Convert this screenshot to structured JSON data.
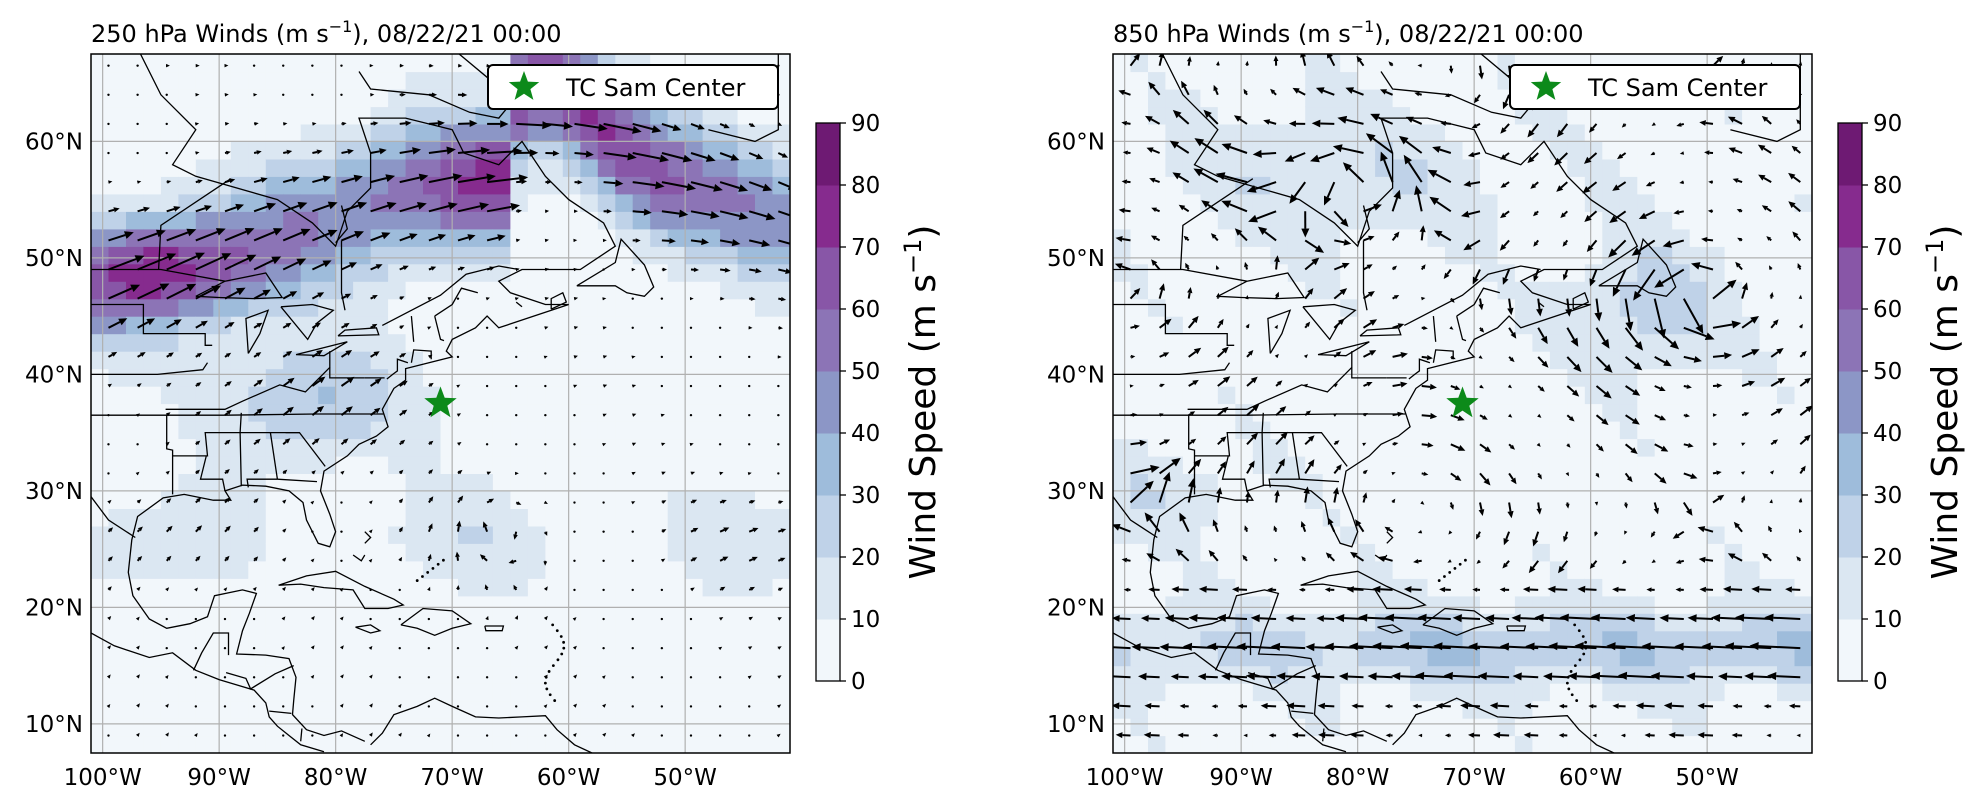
{
  "panels": [
    {
      "id": "250",
      "title_main": "250 hPa Winds (m s",
      "title_exp": "−1",
      "title_tail": "), 08/22/21 00:00",
      "legend_label": "TC Sam Center",
      "center": {
        "lon": -71.0,
        "lat": 37.5
      },
      "jet": {
        "axis_lat_west": 49,
        "strength": "strong"
      }
    },
    {
      "id": "850",
      "title_main": "850 hPa Winds (m s",
      "title_exp": "−1",
      "title_tail": "), 08/22/21 00:00",
      "legend_label": "TC Sam Center",
      "center": {
        "lon": -71.0,
        "lat": 37.5
      },
      "jet": {
        "axis_lat_west": 17,
        "strength": "weak"
      }
    }
  ],
  "axes": {
    "lon_range": [
      -101,
      -41
    ],
    "lat_range": [
      7.5,
      67.5
    ],
    "lon_ticks": [
      {
        "value": -100,
        "label": "100°W"
      },
      {
        "value": -90,
        "label": "90°W"
      },
      {
        "value": -80,
        "label": "80°W"
      },
      {
        "value": -70,
        "label": "70°W"
      },
      {
        "value": -60,
        "label": "60°W"
      },
      {
        "value": -50,
        "label": "50°W"
      }
    ],
    "lat_ticks": [
      {
        "value": 10,
        "label": "10°N"
      },
      {
        "value": 20,
        "label": "20°N"
      },
      {
        "value": 30,
        "label": "30°N"
      },
      {
        "value": 40,
        "label": "40°N"
      },
      {
        "value": 50,
        "label": "50°N"
      },
      {
        "value": 60,
        "label": "60°N"
      }
    ]
  },
  "colorbar": {
    "label_main": "Wind Speed (m s",
    "label_exp": "−1",
    "label_tail": ")",
    "levels": [
      0,
      10,
      20,
      30,
      40,
      50,
      60,
      70,
      80,
      90
    ],
    "colors": [
      "#f2f7fb",
      "#dbe7f2",
      "#bfd2e8",
      "#9ebcdb",
      "#8c96c6",
      "#8c74b6",
      "#8856a7",
      "#862b8e",
      "#6e1a73"
    ]
  },
  "style": {
    "star_color": "#0c8a1a",
    "coast_color": "#000000",
    "grid_color": "#b0b0b0"
  }
}
